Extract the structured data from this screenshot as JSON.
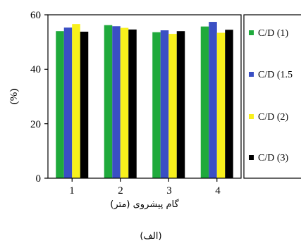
{
  "chart_data": {
    "type": "bar",
    "categories": [
      "1",
      "2",
      "3",
      "4"
    ],
    "series": [
      {
        "name": "C/D (1)",
        "values": [
          54.0,
          56.2,
          53.6,
          55.7
        ],
        "color": "#1faa3c"
      },
      {
        "name": "C/D (1.5",
        "values": [
          55.3,
          55.8,
          54.3,
          57.4
        ],
        "color": "#3a4fc4"
      },
      {
        "name": "C/D (2)",
        "values": [
          56.6,
          55.2,
          53.0,
          53.4
        ],
        "color": "#f8f01c"
      },
      {
        "name": "C/D (3)",
        "values": [
          53.8,
          54.6,
          54.0,
          54.5
        ],
        "color": "#000000"
      }
    ],
    "xlabel": "گام پیشروی (متر)",
    "ylabel": "(%)",
    "ylim": [
      0,
      60
    ],
    "yticks": [
      "0",
      "20",
      "40",
      "60"
    ],
    "legend_position": "right",
    "caption": "(الف)"
  }
}
